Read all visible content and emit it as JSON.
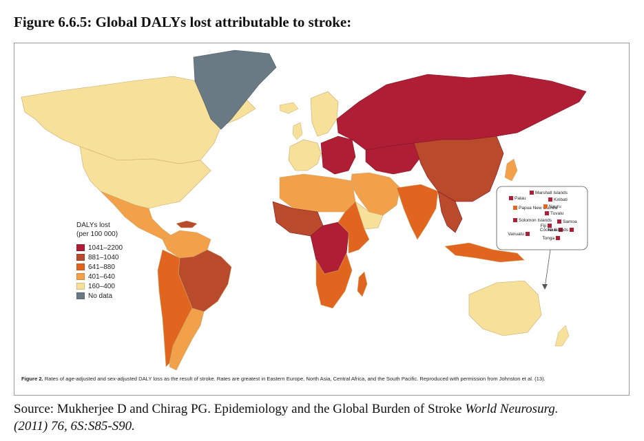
{
  "title": "Figure 6.6.5: Global DALYs lost attributable to stroke:",
  "legend": {
    "title_line1": "DALYs lost",
    "title_line2": "(per 100 000)",
    "items": [
      {
        "label": "1041–2200",
        "color": "#b01e35"
      },
      {
        "label": "881–1040",
        "color": "#b94a2c"
      },
      {
        "label": "641–880",
        "color": "#e1651f"
      },
      {
        "label": "401–640",
        "color": "#f2a04a"
      },
      {
        "label": "160–400",
        "color": "#f7e09a"
      },
      {
        "label": "No data",
        "color": "#6a7a84"
      }
    ]
  },
  "pacific_inset": {
    "items": [
      {
        "name": "Marshall Islands",
        "category": 0
      },
      {
        "name": "Palau",
        "category": 0
      },
      {
        "name": "Kiribati",
        "category": 0
      },
      {
        "name": "Papua New Guinea",
        "category": 2
      },
      {
        "name": "Nauru",
        "category": 2
      },
      {
        "name": "Tuvalu",
        "category": 0
      },
      {
        "name": "Solomon Islands",
        "category": 0
      },
      {
        "name": "Samoa",
        "category": 0
      },
      {
        "name": "Vanuatu",
        "category": 0
      },
      {
        "name": "Fiji",
        "category": 0
      },
      {
        "name": "Niue",
        "category": 0
      },
      {
        "name": "Cooke Islands",
        "category": 0
      },
      {
        "name": "Tonga",
        "category": 0
      }
    ]
  },
  "caption": {
    "label": "Figure 2.",
    "text": "Rates of age-adjusted and sex-adjusted DALY loss as the result of stroke. Rates are greatest in Eastern Europe, North Asia, Central Africa, and the South Pacific. Reproduced with permission from Johnston et al. (13)."
  },
  "source": {
    "prefix": "Source: Mukherjee D and Chirag PG. Epidemiology and the Global Burden of Stroke ",
    "journal": "World Neurosurg.",
    "citation": "(2011) 76, 6S:S85-S90."
  }
}
